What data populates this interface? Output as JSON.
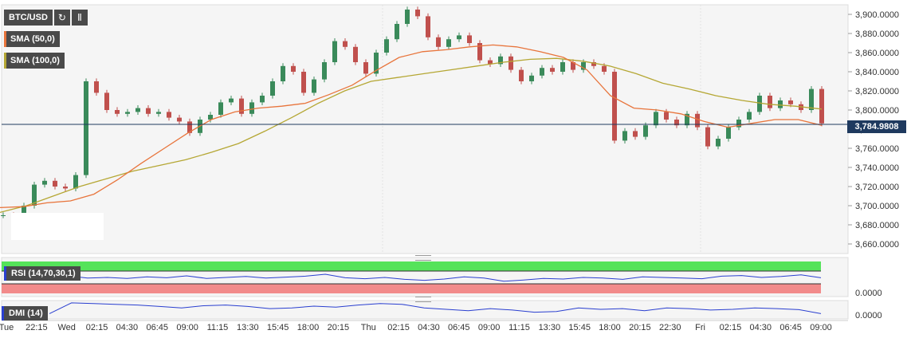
{
  "toolbar": {
    "symbol_label": "BTC/USD",
    "refresh_icon": "refresh-icon",
    "indicators_icon": "bar-chart-icon"
  },
  "legend": {
    "sma50_label": "SMA (50,0)",
    "sma100_label": "SMA (100,0)",
    "sma50_color": "#e8743b",
    "sma100_color": "#b5a734"
  },
  "price_tag": "3,784.9808",
  "indicators": {
    "rsi_label": "RSI (14,70,30,1)",
    "rsi_axis_label": "0.0000",
    "dmi_label": "DMI (14)",
    "dmi_axis_label": "0.0000",
    "indicator_color": "#2a3fd0",
    "overbought_color": "#55e35a",
    "oversold_color": "#f28b8b"
  },
  "colors": {
    "up_candle": "#3a8a5a",
    "down_candle": "#c0504d",
    "price_line": "#1f3a5f"
  },
  "chart_data": {
    "type": "candlestick",
    "title": "",
    "xlabel": "",
    "ylabel": "",
    "ylim": [
      3650,
      3910
    ],
    "last_price": 3784.9808,
    "y_ticks": [
      "3,660.0000",
      "3,680.0000",
      "3,700.0000",
      "3,720.0000",
      "3,740.0000",
      "3,760.0000",
      "3,780.0000",
      "3,800.0000",
      "3,820.0000",
      "3,840.0000",
      "3,860.0000",
      "3,880.0000",
      "3,900.0000"
    ],
    "x_ticks": [
      "Tue",
      "22:15",
      "Wed",
      "02:15",
      "04:30",
      "06:45",
      "09:00",
      "11:15",
      "13:30",
      "15:45",
      "18:00",
      "20:15",
      "Thu",
      "02:15",
      "04:30",
      "06:45",
      "09:00",
      "11:15",
      "13:30",
      "15:45",
      "18:00",
      "20:15",
      "22:30",
      "Fri",
      "02:15",
      "04:30",
      "06:45",
      "09:00"
    ],
    "close_path": [
      3690,
      3682,
      3700,
      3722,
      3726,
      3720,
      3718,
      3732,
      3830,
      3818,
      3800,
      3796,
      3798,
      3802,
      3796,
      3798,
      3792,
      3788,
      3776,
      3790,
      3795,
      3808,
      3812,
      3796,
      3808,
      3815,
      3830,
      3846,
      3840,
      3818,
      3832,
      3850,
      3872,
      3866,
      3850,
      3838,
      3860,
      3874,
      3890,
      3905,
      3898,
      3876,
      3866,
      3874,
      3878,
      3870,
      3852,
      3848,
      3856,
      3842,
      3830,
      3836,
      3844,
      3840,
      3850,
      3842,
      3850,
      3846,
      3840,
      3768,
      3778,
      3772,
      3784,
      3798,
      3790,
      3784,
      3796,
      3782,
      3762,
      3770,
      3782,
      3790,
      3798,
      3815,
      3802,
      3810,
      3806,
      3800,
      3822,
      3786
    ],
    "sma_50": [
      3698,
      3699,
      3703,
      3705,
      3712,
      3727,
      3744,
      3760,
      3776,
      3790,
      3798,
      3802,
      3804,
      3807,
      3816,
      3826,
      3841,
      3855,
      3861,
      3863,
      3866,
      3868,
      3866,
      3861,
      3855,
      3842,
      3815,
      3802,
      3800,
      3796,
      3788,
      3782,
      3786,
      3790,
      3790,
      3784
    ],
    "sma_100": [
      3693,
      3700,
      3710,
      3720,
      3728,
      3736,
      3742,
      3748,
      3756,
      3765,
      3778,
      3792,
      3807,
      3820,
      3830,
      3834,
      3838,
      3842,
      3846,
      3850,
      3853,
      3854,
      3851,
      3846,
      3838,
      3828,
      3822,
      3815,
      3810,
      3806,
      3804,
      3801
    ],
    "rsi": [
      52,
      55,
      48,
      50,
      47,
      52,
      49,
      55,
      47,
      50,
      53,
      48,
      51,
      54,
      60,
      49,
      46,
      50,
      44,
      41,
      45,
      52,
      48,
      38,
      42,
      47,
      45,
      50,
      48,
      44,
      52,
      50,
      48,
      46,
      54,
      56,
      50,
      53,
      58,
      49
    ],
    "dmi": [
      20,
      95,
      90,
      85,
      80,
      70,
      60,
      75,
      80,
      70,
      55,
      60,
      72,
      65,
      80,
      90,
      85,
      60,
      50,
      40,
      55,
      45,
      30,
      35,
      60,
      50,
      55,
      40,
      60,
      55,
      45,
      50,
      60,
      55,
      48,
      20
    ]
  }
}
